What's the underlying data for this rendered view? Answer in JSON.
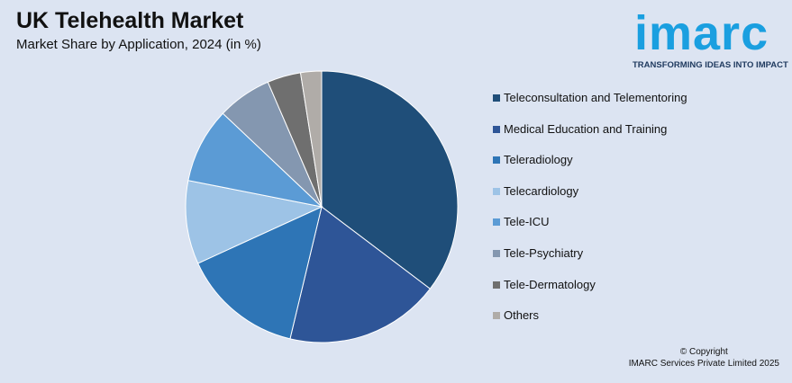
{
  "header": {
    "title": "UK Telehealth Market",
    "subtitle": "Market Share by Application, 2024 (in %)"
  },
  "logo": {
    "word": "imarc",
    "tagline": "TRANSFORMING IDEAS INTO IMPACT",
    "color": "#1a9fe0"
  },
  "footer": {
    "line1": "© Copyright",
    "line2": "IMARC Services Private Limited 2025"
  },
  "chart_data": {
    "type": "pie",
    "start_angle_deg": 0,
    "direction": "clockwise",
    "legend_position": "right",
    "categories": [
      "Teleconsultation and Telementoring",
      "Medical Education and Training",
      "Teleradiology",
      "Telecardiology",
      "Tele-ICU",
      "Tele-Psychiatry",
      "Tele-Dermatology",
      "Others"
    ],
    "values": [
      35.5,
      18.5,
      14.5,
      10.0,
      9.0,
      6.5,
      4.0,
      2.5
    ],
    "colors": [
      "#1f4e79",
      "#2e5597",
      "#2e75b6",
      "#9dc3e6",
      "#5b9bd5",
      "#8497b0",
      "#6f6f6f",
      "#b0aca8"
    ]
  }
}
